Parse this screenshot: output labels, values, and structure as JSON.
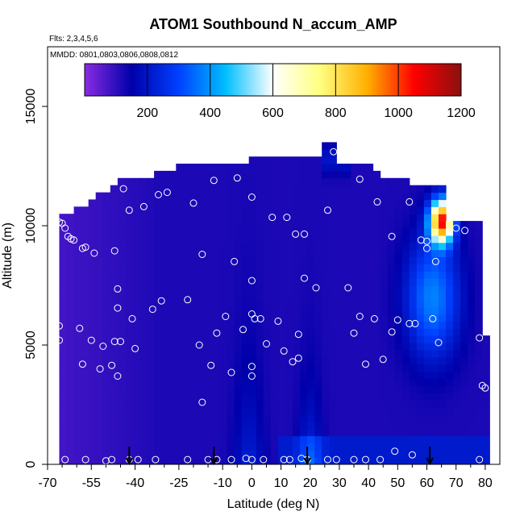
{
  "chart_data": {
    "type": "heatmap",
    "title": "ATOM1 Southbound N_accum_AMP",
    "flights_note": "Flts: 2,3,4,5,6",
    "dates_note": "MMDD: 0801,0803,0806,0808,0812",
    "xlabel": "Latitude (deg N)",
    "ylabel": "Altitude (m)",
    "xlim": [
      -70,
      85
    ],
    "ylim": [
      0,
      17500
    ],
    "x_ticks": [
      -70,
      -55,
      -40,
      -25,
      -10,
      0,
      10,
      20,
      30,
      40,
      50,
      60,
      70,
      80
    ],
    "x_tick_labels": [
      "-70",
      "-55",
      "-40",
      "-25",
      "-10",
      "0",
      "10",
      "20",
      "30",
      "40",
      "50",
      "60",
      "70",
      "80"
    ],
    "x_minor_ticks": [
      -65,
      -60,
      -50,
      -45,
      -35,
      -30,
      -20,
      -15,
      -5,
      5,
      15,
      25,
      35,
      45,
      55,
      65,
      75
    ],
    "y_ticks": [
      0,
      5000,
      10000,
      15000
    ],
    "y_tick_labels": [
      "0",
      "5000",
      "10000",
      "15000"
    ],
    "colorbar": {
      "min": 0,
      "max": 1200,
      "ticks": [
        200,
        400,
        600,
        800,
        1000,
        1200
      ],
      "tick_labels": [
        "200",
        "400",
        "600",
        "800",
        "1000",
        "1200"
      ],
      "colors": [
        "#8a2be2",
        "#0000aa",
        "#0040ff",
        "#00bfff",
        "#ffffff",
        "#ffff80",
        "#ffb000",
        "#ff0000",
        "#8b1010"
      ]
    },
    "grid": false,
    "markers": {
      "label": "sample locations",
      "points": [
        [
          -66,
          10150
        ],
        [
          -65,
          10100
        ],
        [
          -64,
          9900
        ],
        [
          -63,
          9550
        ],
        [
          -62,
          9450
        ],
        [
          -61,
          9400
        ],
        [
          -58,
          9050
        ],
        [
          -57,
          9100
        ],
        [
          -54,
          8850
        ],
        [
          -47,
          8950
        ],
        [
          -66,
          5800
        ],
        [
          -66,
          5200
        ],
        [
          -59,
          5700
        ],
        [
          -58,
          4200
        ],
        [
          -55,
          5200
        ],
        [
          -52,
          4000
        ],
        [
          -51,
          4950
        ],
        [
          -48,
          4150
        ],
        [
          -47,
          5150
        ],
        [
          -46,
          3700
        ],
        [
          -45,
          5150
        ],
        [
          -46,
          6550
        ],
        [
          -46,
          7350
        ],
        [
          -44,
          11550
        ],
        [
          -42,
          10650
        ],
        [
          -37,
          10800
        ],
        [
          -40,
          4850
        ],
        [
          -41,
          6100
        ],
        [
          -34,
          6500
        ],
        [
          -31,
          6850
        ],
        [
          -32,
          11300
        ],
        [
          -29,
          11400
        ],
        [
          -20,
          10950
        ],
        [
          -13,
          11900
        ],
        [
          -5,
          12000
        ],
        [
          0,
          11200
        ],
        [
          -22,
          6900
        ],
        [
          -18,
          5000
        ],
        [
          -17,
          2600
        ],
        [
          -17,
          8800
        ],
        [
          -14,
          4150
        ],
        [
          -12,
          5500
        ],
        [
          -9,
          6200
        ],
        [
          -7,
          3850
        ],
        [
          -6,
          8500
        ],
        [
          -3,
          5650
        ],
        [
          0,
          7700
        ],
        [
          0,
          6300
        ],
        [
          1,
          6100
        ],
        [
          0,
          4100
        ],
        [
          0,
          3700
        ],
        [
          3,
          6100
        ],
        [
          5,
          5050
        ],
        [
          7,
          10350
        ],
        [
          9,
          6000
        ],
        [
          11,
          4750
        ],
        [
          14,
          4300
        ],
        [
          16,
          5450
        ],
        [
          16,
          4450
        ],
        [
          18,
          7800
        ],
        [
          18,
          9650
        ],
        [
          15,
          9650
        ],
        [
          12,
          10350
        ],
        [
          22,
          7400
        ],
        [
          26,
          10650
        ],
        [
          28,
          13100
        ],
        [
          33,
          7400
        ],
        [
          35,
          5500
        ],
        [
          37,
          6200
        ],
        [
          39,
          4200
        ],
        [
          42,
          6100
        ],
        [
          45,
          4400
        ],
        [
          48,
          5550
        ],
        [
          37,
          11950
        ],
        [
          43,
          11000
        ],
        [
          48,
          9550
        ],
        [
          50,
          6050
        ],
        [
          54,
          11000
        ],
        [
          54,
          5900
        ],
        [
          56,
          5900
        ],
        [
          58,
          9400
        ],
        [
          60,
          9350
        ],
        [
          60,
          9050
        ],
        [
          62,
          6100
        ],
        [
          63,
          8500
        ],
        [
          64,
          5100
        ],
        [
          70,
          9900
        ],
        [
          73,
          9800
        ],
        [
          78,
          5300
        ],
        [
          79,
          3300
        ],
        [
          80,
          3200
        ],
        [
          -64,
          200
        ],
        [
          -57,
          200
        ],
        [
          -50,
          150
        ],
        [
          -48,
          200
        ],
        [
          -42,
          200
        ],
        [
          -39,
          200
        ],
        [
          -33,
          200
        ],
        [
          -22,
          200
        ],
        [
          -15,
          200
        ],
        [
          -12,
          200
        ],
        [
          -7,
          200
        ],
        [
          -2,
          250
        ],
        [
          0,
          200
        ],
        [
          4,
          200
        ],
        [
          11,
          200
        ],
        [
          13,
          200
        ],
        [
          17,
          250
        ],
        [
          19,
          200
        ],
        [
          26,
          200
        ],
        [
          29,
          200
        ],
        [
          35,
          200
        ],
        [
          39,
          200
        ],
        [
          44,
          200
        ],
        [
          49,
          550
        ],
        [
          55,
          400
        ],
        [
          78,
          200
        ]
      ]
    },
    "arrows": {
      "label": "profile markers",
      "x": [
        -42,
        -13,
        19,
        61
      ]
    }
  }
}
